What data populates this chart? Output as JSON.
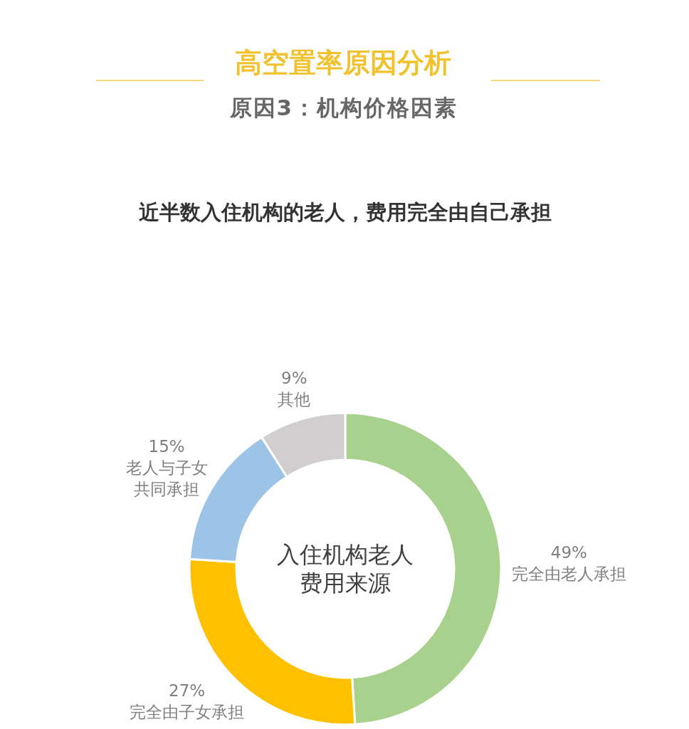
{
  "chart_data": {
    "type": "donut",
    "title": "高空置率原因分析",
    "subtitle": "原因3：机构价格因素",
    "annotations": [
      "近半数入住机构的老人，费用完全由自己承担",
      "入住机构老人费用来源"
    ],
    "categories": [
      "完全由老人承担",
      "完全由子女承担",
      "老人与子女共同承担",
      "其他"
    ],
    "values": [
      49,
      27,
      15,
      9
    ],
    "value_labels": [
      "49%",
      "27%",
      "15%",
      "9%"
    ],
    "colors": [
      "#a9d18e",
      "#ffc000",
      "#9dc3e6",
      "#d0cece"
    ]
  }
}
